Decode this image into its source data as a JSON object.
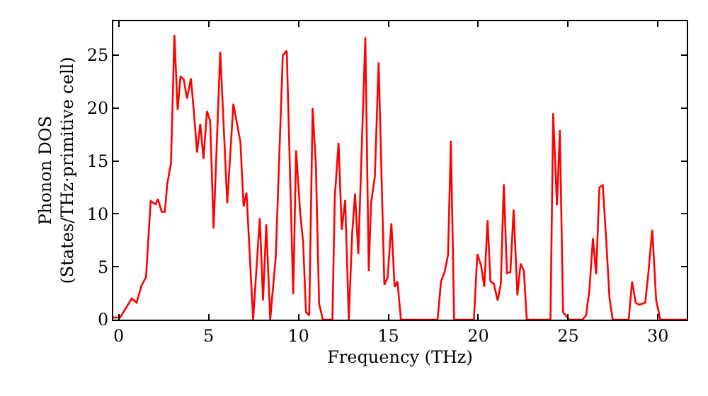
{
  "chart_data": {
    "type": "line",
    "xlabel": "Frequency (THz)",
    "ylabel": "Phonon DOS\n(States/THz·primitive cell)",
    "xlim": [
      -0.3,
      31.6
    ],
    "ylim": [
      0,
      28.2
    ],
    "xticks": [
      0,
      5,
      10,
      15,
      20,
      25,
      30
    ],
    "yticks": [
      0,
      5,
      10,
      15,
      20,
      25
    ],
    "marker": "none",
    "line_style": "solid",
    "series": [
      {
        "color": "#ff0000",
        "x": [
          -0.3,
          0.08,
          0.73,
          1.0,
          1.26,
          1.52,
          1.78,
          2.05,
          2.18,
          2.39,
          2.57,
          2.7,
          2.91,
          3.1,
          3.28,
          3.44,
          3.62,
          3.8,
          4.02,
          4.17,
          4.36,
          4.54,
          4.72,
          4.91,
          5.09,
          5.28,
          5.65,
          6.04,
          6.38,
          6.77,
          6.95,
          7.11,
          7.48,
          7.85,
          8.03,
          8.21,
          8.43,
          8.74,
          9.13,
          9.35,
          9.71,
          9.87,
          10.1,
          10.26,
          10.42,
          10.6,
          10.79,
          10.97,
          11.15,
          11.36,
          11.89,
          12.02,
          12.23,
          12.41,
          12.6,
          12.8,
          12.99,
          13.15,
          13.33,
          13.72,
          13.91,
          14.04,
          14.25,
          14.46,
          14.78,
          14.96,
          15.17,
          15.35,
          15.51,
          15.7,
          17.74,
          17.93,
          18.13,
          18.32,
          18.48,
          18.66,
          19.76,
          19.95,
          20.16,
          20.34,
          20.52,
          20.68,
          20.87,
          21.08,
          21.26,
          21.42,
          21.6,
          21.79,
          21.97,
          22.18,
          22.36,
          22.54,
          22.7,
          24.02,
          24.17,
          24.38,
          24.54,
          24.72,
          25.06,
          25.79,
          26.0,
          26.19,
          26.38,
          26.56,
          26.74,
          26.93,
          27.11,
          27.3,
          27.48,
          28.37,
          28.56,
          28.76,
          28.95,
          29.29,
          29.47,
          29.68,
          29.9,
          30.13,
          31.6
        ],
        "values": [
          0.2,
          0.2,
          2.0,
          1.6,
          3.2,
          4.0,
          11.2,
          10.9,
          11.4,
          10.2,
          10.2,
          12.8,
          14.8,
          26.9,
          19.8,
          23.0,
          22.7,
          20.9,
          22.8,
          19.9,
          15.8,
          18.5,
          15.2,
          19.7,
          18.8,
          8.6,
          25.3,
          11.0,
          20.4,
          16.8,
          10.7,
          12.0,
          0,
          9.6,
          1.8,
          9.0,
          0,
          6.0,
          25.0,
          25.4,
          2.4,
          16.0,
          10.0,
          7.3,
          0.7,
          0.4,
          20.0,
          14.6,
          1.5,
          0,
          0,
          11.5,
          16.7,
          8.5,
          11.3,
          0,
          8.2,
          11.9,
          6.2,
          26.7,
          4.6,
          11.0,
          13.5,
          24.3,
          3.3,
          4.0,
          9.1,
          3.1,
          3.6,
          0,
          0,
          3.6,
          4.5,
          6.1,
          16.9,
          0,
          0,
          6.2,
          5.1,
          3.1,
          9.4,
          3.6,
          3.4,
          1.8,
          3.4,
          12.8,
          4.4,
          4.5,
          10.4,
          2.3,
          5.3,
          4.6,
          0,
          0,
          19.5,
          10.8,
          17.9,
          0.7,
          0,
          0,
          0.4,
          2.9,
          7.7,
          4.3,
          12.5,
          12.7,
          7.8,
          2.1,
          0,
          0,
          3.6,
          1.6,
          1.4,
          1.6,
          4.5,
          8.5,
          1.8,
          0,
          0
        ]
      }
    ]
  }
}
